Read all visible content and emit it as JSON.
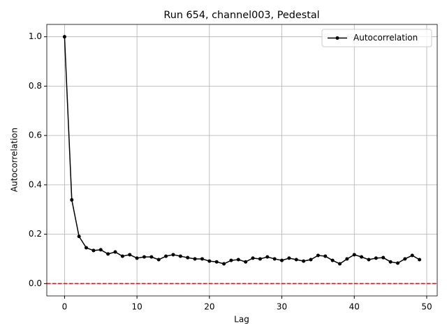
{
  "chart_data": {
    "type": "line",
    "title": "Run 654, channel003, Pedestal",
    "xlabel": "Lag",
    "ylabel": "Autocorrelation",
    "x": [
      0,
      1,
      2,
      3,
      4,
      5,
      6,
      7,
      8,
      9,
      10,
      11,
      12,
      13,
      14,
      15,
      16,
      17,
      18,
      19,
      20,
      21,
      22,
      23,
      24,
      25,
      26,
      27,
      28,
      29,
      30,
      31,
      32,
      33,
      34,
      35,
      36,
      37,
      38,
      39,
      40,
      41,
      42,
      43,
      44,
      45,
      46,
      47,
      48,
      49
    ],
    "series": [
      {
        "name": "Autocorrelation",
        "color": "#000000",
        "values": [
          1.0,
          0.339,
          0.191,
          0.145,
          0.134,
          0.137,
          0.12,
          0.128,
          0.111,
          0.117,
          0.103,
          0.108,
          0.108,
          0.097,
          0.111,
          0.117,
          0.111,
          0.105,
          0.1,
          0.1,
          0.091,
          0.088,
          0.08,
          0.094,
          0.097,
          0.088,
          0.103,
          0.1,
          0.108,
          0.1,
          0.094,
          0.103,
          0.097,
          0.091,
          0.097,
          0.114,
          0.111,
          0.094,
          0.08,
          0.1,
          0.117,
          0.108,
          0.097,
          0.103,
          0.105,
          0.088,
          0.083,
          0.1,
          0.114,
          0.097
        ]
      }
    ],
    "hline": {
      "value": 0,
      "color": "#ff0000"
    },
    "xlim": [
      -2.45,
      51.45
    ],
    "ylim": [
      -0.05,
      1.05
    ],
    "xticks": [
      0,
      10,
      20,
      30,
      40,
      50
    ],
    "yticks": [
      {
        "value": 0,
        "label": "0.0"
      },
      {
        "value": 0.2,
        "label": "0.2"
      },
      {
        "value": 0.4,
        "label": "0.4"
      },
      {
        "value": 0.6,
        "label": "0.6"
      },
      {
        "value": 0.8,
        "label": "0.8"
      },
      {
        "value": 1,
        "label": "1.0"
      }
    ],
    "grid": true,
    "legend": "upper right"
  }
}
